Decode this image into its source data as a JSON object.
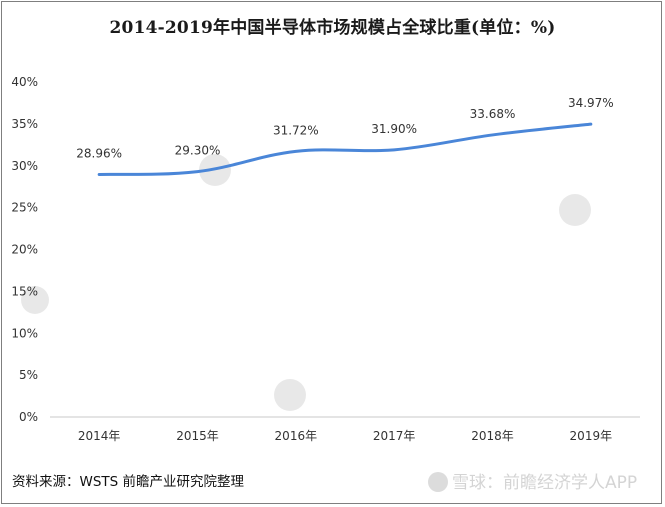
{
  "title": "2014-2019年中国半导体市场规模占全球比重(单位：%)",
  "source": "资料来源：WSTS 前瞻产业研究院整理",
  "footer_watermark": "雪球：前瞻经济学人APP",
  "colors": {
    "line": "#4a86d8",
    "axis": "#c8c8c8",
    "text": "#333333"
  },
  "chart_data": {
    "type": "line",
    "title": "2014-2019年中国半导体市场规模占全球比重(单位：%)",
    "xlabel": "",
    "ylabel": "",
    "categories": [
      "2014年",
      "2015年",
      "2016年",
      "2017年",
      "2018年",
      "2019年"
    ],
    "values": [
      28.96,
      29.3,
      31.72,
      31.9,
      33.68,
      34.97
    ],
    "value_labels": [
      "28.96%",
      "29.30%",
      "31.72%",
      "31.90%",
      "33.68%",
      "34.97%"
    ],
    "y_ticks": [
      "0%",
      "5%",
      "10%",
      "15%",
      "20%",
      "25%",
      "30%",
      "35%",
      "40%"
    ],
    "y_tick_values": [
      0,
      5,
      10,
      15,
      20,
      25,
      30,
      35,
      40
    ],
    "ylim": [
      0,
      40
    ],
    "grid": false,
    "smooth": true
  }
}
